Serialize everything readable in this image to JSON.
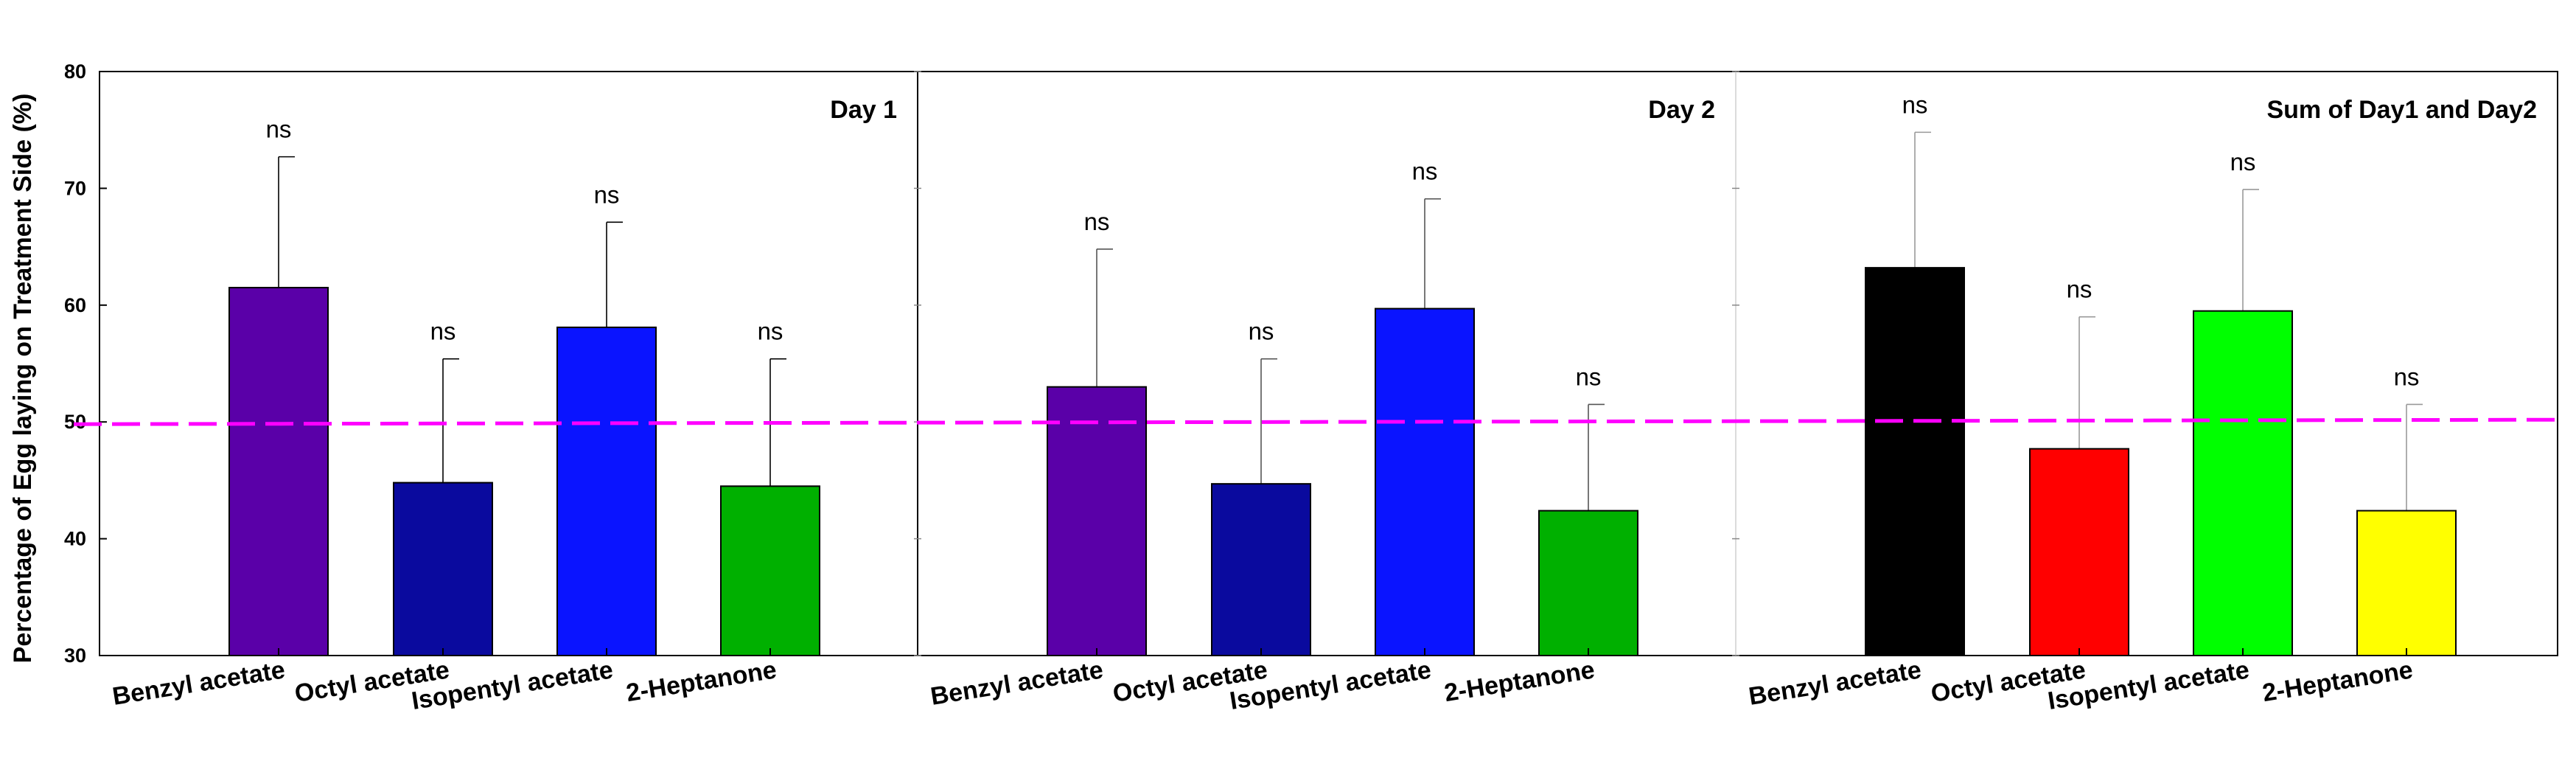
{
  "chart_data": {
    "type": "bar",
    "ylabel": "Percentage of Egg laying on Treatment Side (%)",
    "ylim": [
      30,
      80
    ],
    "yticks": [
      30,
      40,
      50,
      60,
      70,
      80
    ],
    "reference_line": {
      "value": 50,
      "color": "#ff00ff",
      "style": "dashed"
    },
    "categories": [
      "Benzyl acetate",
      "Octyl acetate",
      "Isopentyl acetate",
      "2-Heptanone"
    ],
    "panels": [
      {
        "title": "Day 1",
        "values": [
          61.5,
          44.8,
          58.1,
          44.5
        ],
        "errors": [
          11.2,
          10.6,
          9.0,
          10.9
        ],
        "significance": [
          "ns",
          "ns",
          "ns",
          "ns"
        ],
        "colors": [
          "#5a00a8",
          "#0a0a9e",
          "#0a14ff",
          "#00b000"
        ]
      },
      {
        "title": "Day 2",
        "values": [
          53.0,
          44.7,
          59.7,
          42.4
        ],
        "errors": [
          11.8,
          10.7,
          9.4,
          9.1
        ],
        "significance": [
          "ns",
          "ns",
          "ns",
          "ns"
        ],
        "colors": [
          "#5a00a8",
          "#0a0a9e",
          "#0a14ff",
          "#00b000"
        ]
      },
      {
        "title": "Sum of Day1 and Day2",
        "values": [
          63.2,
          47.7,
          59.5,
          42.4
        ],
        "errors": [
          11.6,
          11.3,
          10.4,
          9.1
        ],
        "significance": [
          "ns",
          "ns",
          "ns",
          "ns"
        ],
        "colors": [
          "#000000",
          "#ff0000",
          "#00ff00",
          "#ffff00"
        ]
      }
    ]
  }
}
